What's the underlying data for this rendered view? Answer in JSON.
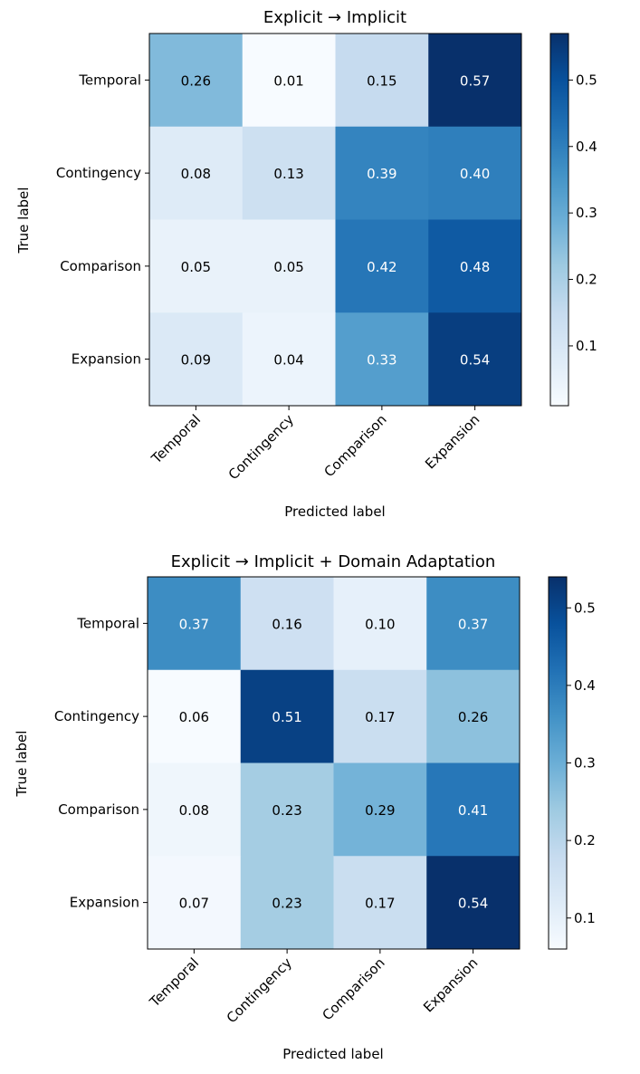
{
  "chart_data": [
    {
      "type": "heatmap",
      "title": "Explicit → Implicit",
      "xlabel": "Predicted label",
      "ylabel": "True label",
      "row_labels": [
        "Temporal",
        "Contingency",
        "Comparison",
        "Expansion"
      ],
      "col_labels": [
        "Temporal",
        "Contingency",
        "Comparison",
        "Expansion"
      ],
      "values": [
        [
          0.26,
          0.01,
          0.15,
          0.57
        ],
        [
          0.08,
          0.13,
          0.39,
          0.4
        ],
        [
          0.05,
          0.05,
          0.42,
          0.48
        ],
        [
          0.09,
          0.04,
          0.33,
          0.54
        ]
      ],
      "value_labels": [
        [
          "0.26",
          "0.01",
          "0.15",
          "0.57"
        ],
        [
          "0.08",
          "0.13",
          "0.39",
          "0.40"
        ],
        [
          "0.05",
          "0.05",
          "0.42",
          "0.48"
        ],
        [
          "0.09",
          "0.04",
          "0.33",
          "0.54"
        ]
      ],
      "colormap": "Blues",
      "vmin": 0.01,
      "vmax": 0.57,
      "colorbar_ticks": [
        0.1,
        0.2,
        0.3,
        0.4,
        0.5
      ],
      "colorbar_tick_labels": [
        "0.1",
        "0.2",
        "0.3",
        "0.4",
        "0.5"
      ]
    },
    {
      "type": "heatmap",
      "title": "Explicit → Implicit + Domain Adaptation",
      "xlabel": "Predicted label",
      "ylabel": "True label",
      "row_labels": [
        "Temporal",
        "Contingency",
        "Comparison",
        "Expansion"
      ],
      "col_labels": [
        "Temporal",
        "Contingency",
        "Comparison",
        "Expansion"
      ],
      "values": [
        [
          0.37,
          0.16,
          0.1,
          0.37
        ],
        [
          0.06,
          0.51,
          0.17,
          0.26
        ],
        [
          0.08,
          0.23,
          0.29,
          0.41
        ],
        [
          0.07,
          0.23,
          0.17,
          0.54
        ]
      ],
      "value_labels": [
        [
          "0.37",
          "0.16",
          "0.10",
          "0.37"
        ],
        [
          "0.06",
          "0.51",
          "0.17",
          "0.26"
        ],
        [
          "0.08",
          "0.23",
          "0.29",
          "0.41"
        ],
        [
          "0.07",
          "0.23",
          "0.17",
          "0.54"
        ]
      ],
      "colormap": "Blues",
      "vmin": 0.06,
      "vmax": 0.54,
      "colorbar_ticks": [
        0.1,
        0.2,
        0.3,
        0.4,
        0.5
      ],
      "colorbar_tick_labels": [
        "0.1",
        "0.2",
        "0.3",
        "0.4",
        "0.5"
      ]
    }
  ]
}
